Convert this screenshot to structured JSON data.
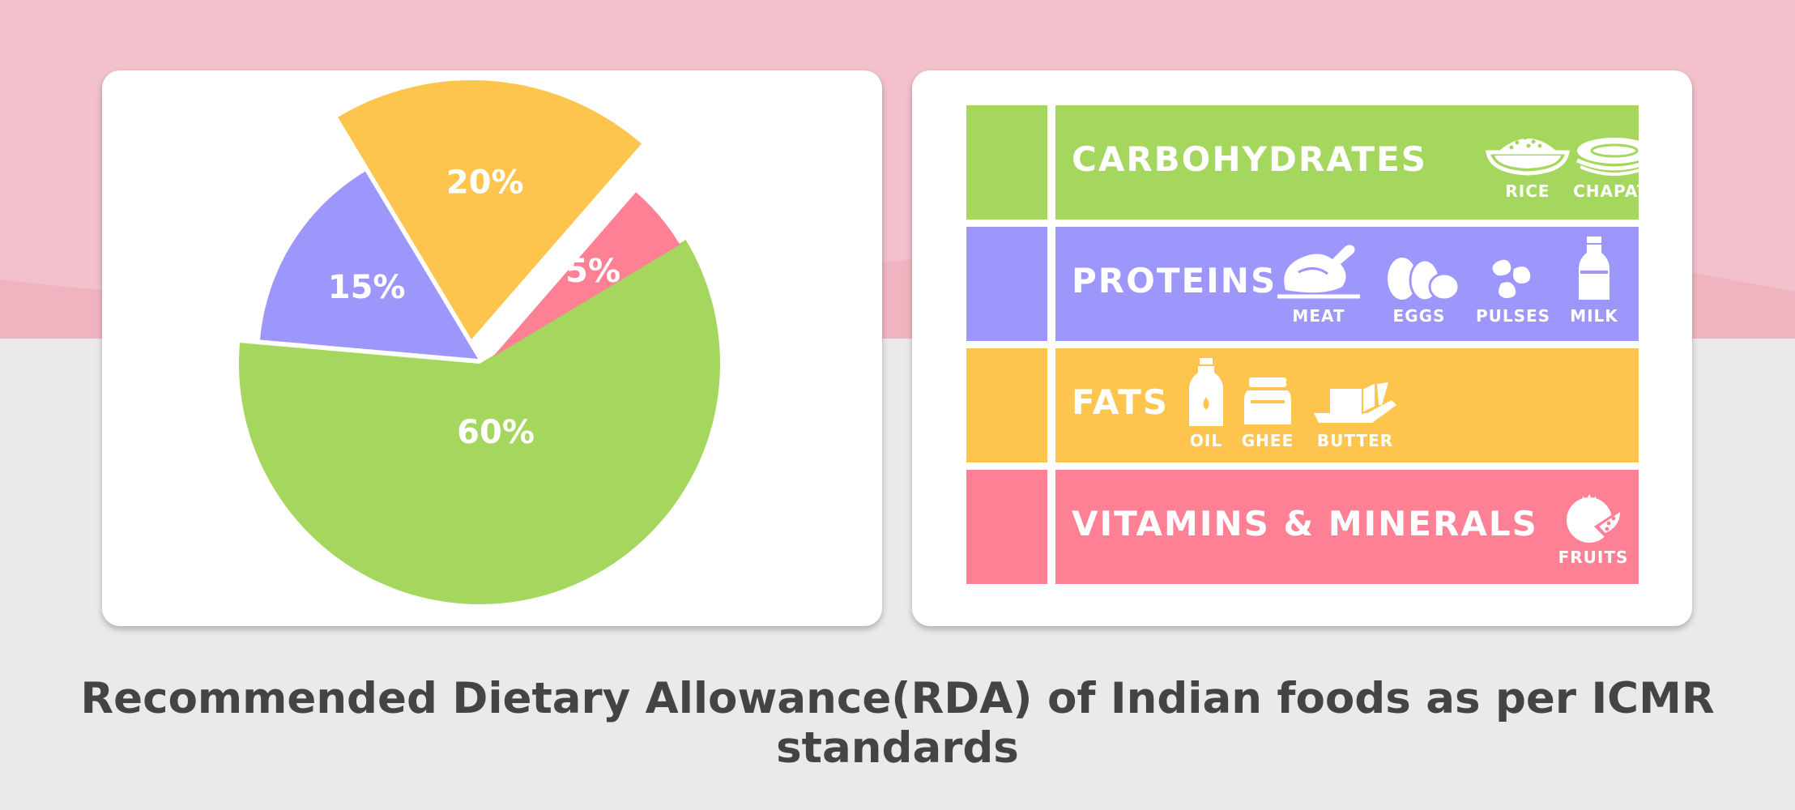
{
  "colors": {
    "band": "#f2c1cc",
    "background": "#ebe9ea",
    "green": "#a5d65e",
    "purple": "#9d96fb",
    "yellow": "#fec54e",
    "pink": "#fe8094",
    "caption": "#454345"
  },
  "chart_data": {
    "type": "pie",
    "title": "",
    "exploded": true,
    "slices": [
      {
        "label": "60%",
        "value": 60,
        "color": "#a5d65e"
      },
      {
        "label": "15%",
        "value": 15,
        "color": "#9d96fb"
      },
      {
        "label": "20%",
        "value": 20,
        "color": "#fec54e"
      },
      {
        "label": "5%",
        "value": 5,
        "color": "#fe8094"
      }
    ]
  },
  "nutrients": [
    {
      "name": "CARBOHYDRATES",
      "color": "#a5d65e",
      "foods": [
        {
          "label": "RICE",
          "icon": "rice-bowl-icon"
        },
        {
          "label": "CHAPATI",
          "icon": "chapati-icon"
        }
      ]
    },
    {
      "name": "PROTEINS",
      "color": "#9d96fb",
      "foods": [
        {
          "label": "MEAT",
          "icon": "chicken-icon"
        },
        {
          "label": "EGGS",
          "icon": "eggs-icon"
        },
        {
          "label": "PULSES",
          "icon": "beans-icon"
        },
        {
          "label": "MILK",
          "icon": "milk-bottle-icon"
        }
      ]
    },
    {
      "name": "FATS",
      "color": "#fec54e",
      "foods": [
        {
          "label": "OIL",
          "icon": "oil-bottle-icon"
        },
        {
          "label": "GHEE",
          "icon": "ghee-jar-icon"
        },
        {
          "label": "BUTTER",
          "icon": "butter-icon"
        }
      ]
    },
    {
      "name": "VITAMINS & MINERALS",
      "color": "#fe8094",
      "foods": [
        {
          "label": "FRUITS",
          "icon": "pomegranate-icon"
        }
      ]
    }
  ],
  "caption": "Recommended Dietary Allowance(RDA) of Indian foods as per ICMR standards"
}
